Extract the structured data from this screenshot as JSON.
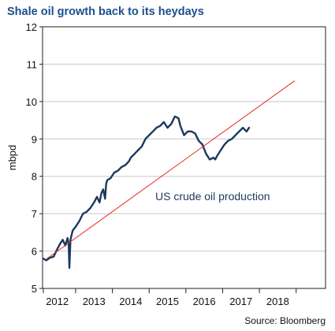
{
  "title": "Shale oil growth back to its heydays",
  "source": "Source: Bloomberg",
  "chart_data": {
    "type": "line",
    "title": "Shale oil growth back to its heydays",
    "xlabel": "",
    "ylabel": "mbpd",
    "xlim": [
      2011.6,
      2019.3
    ],
    "ylim": [
      5,
      12
    ],
    "yticks": [
      5,
      6,
      7,
      8,
      9,
      10,
      11,
      12
    ],
    "xtick_labels": [
      "2012",
      "2013",
      "2014",
      "2015",
      "2016",
      "2017",
      "2018"
    ],
    "xticks": [
      2012,
      2013,
      2014,
      2015,
      2016,
      2017,
      2018
    ],
    "grid": true,
    "annotation": "US crude oil production",
    "series": [
      {
        "name": "",
        "color": "#1b3a5c",
        "x": [
          2011.62,
          2011.7,
          2011.8,
          2011.9,
          2012.0,
          2012.08,
          2012.15,
          2012.22,
          2012.28,
          2012.31,
          2012.33,
          2012.36,
          2012.42,
          2012.5,
          2012.6,
          2012.7,
          2012.8,
          2012.9,
          2013.0,
          2013.08,
          2013.15,
          2013.2,
          2013.25,
          2013.3,
          2013.33,
          2013.36,
          2013.45,
          2013.55,
          2013.65,
          2013.75,
          2013.85,
          2013.95,
          2014.0,
          2014.1,
          2014.2,
          2014.3,
          2014.4,
          2014.5,
          2014.6,
          2014.7,
          2014.8,
          2014.9,
          2015.0,
          2015.1,
          2015.2,
          2015.25,
          2015.3,
          2015.35,
          2015.45,
          2015.55,
          2015.65,
          2015.75,
          2015.85,
          2015.95,
          2016.05,
          2016.15,
          2016.25,
          2016.3,
          2016.35,
          2016.45,
          2016.55,
          2016.65,
          2016.75,
          2016.85,
          2016.95,
          2017.05,
          2017.15,
          2017.22
        ],
        "values": [
          5.8,
          5.75,
          5.82,
          5.85,
          6.05,
          6.2,
          6.3,
          6.15,
          6.35,
          6.2,
          5.55,
          6.3,
          6.55,
          6.65,
          6.8,
          7.0,
          7.05,
          7.15,
          7.3,
          7.45,
          7.3,
          7.55,
          7.65,
          7.4,
          7.8,
          7.9,
          7.95,
          8.1,
          8.15,
          8.25,
          8.3,
          8.4,
          8.5,
          8.6,
          8.7,
          8.8,
          9.0,
          9.1,
          9.2,
          9.3,
          9.35,
          9.45,
          9.3,
          9.4,
          9.6,
          9.58,
          9.55,
          9.35,
          9.1,
          9.2,
          9.2,
          9.15,
          8.95,
          8.85,
          8.6,
          8.45,
          8.5,
          8.45,
          8.55,
          8.7,
          8.85,
          8.95,
          9.0,
          9.1,
          9.2,
          9.3,
          9.2,
          9.3
        ]
      },
      {
        "name": "",
        "color": "#e8261c",
        "x": [
          2011.72,
          2018.45
        ],
        "values": [
          5.8,
          10.55
        ]
      }
    ]
  }
}
